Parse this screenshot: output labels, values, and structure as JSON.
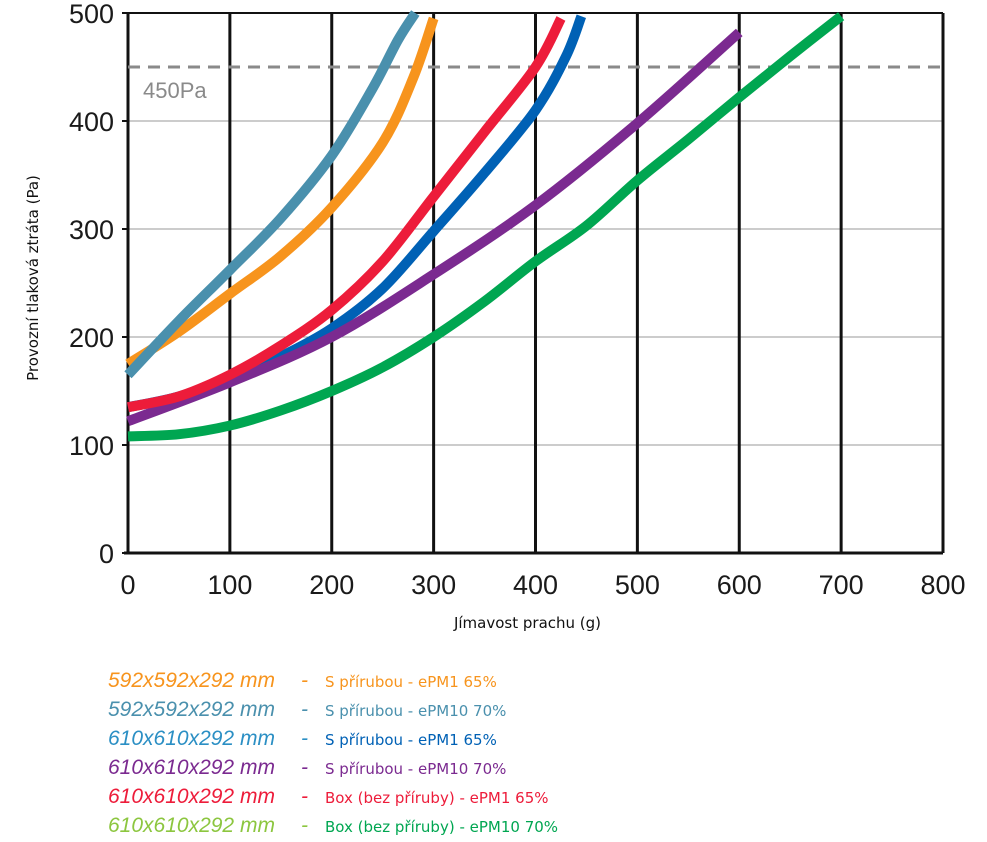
{
  "chart_data": {
    "type": "line",
    "xlabel": "Jímavost prachu (g)",
    "ylabel": "Provozní tlaková ztráta (Pa)",
    "xlim": [
      0,
      800
    ],
    "ylim": [
      0,
      500
    ],
    "xticks": [
      0,
      100,
      200,
      300,
      400,
      500,
      600,
      700,
      800
    ],
    "yticks": [
      0,
      100,
      200,
      300,
      400,
      500
    ],
    "grid": "on",
    "reference_line": {
      "y": 450,
      "label": "450Pa",
      "style": "dashed",
      "color": "#8a8a8a"
    },
    "series": [
      {
        "size": "592x592x292 mm",
        "dash": "-",
        "desc": "S přírubou - ePM1 65%",
        "color": "#f7941d",
        "points": [
          [
            0,
            175
          ],
          [
            50,
            205
          ],
          [
            100,
            240
          ],
          [
            150,
            275
          ],
          [
            200,
            320
          ],
          [
            250,
            380
          ],
          [
            280,
            440
          ],
          [
            300,
            495
          ]
        ]
      },
      {
        "size": "592x592x292 mm",
        "dash": "-",
        "desc": "S přírubou - ePM10 70%",
        "color": "#4a90ad",
        "points": [
          [
            0,
            165
          ],
          [
            50,
            215
          ],
          [
            100,
            262
          ],
          [
            150,
            310
          ],
          [
            200,
            368
          ],
          [
            240,
            430
          ],
          [
            265,
            475
          ],
          [
            282,
            500
          ]
        ]
      },
      {
        "size": "610x610x292 mm",
        "dash": "-",
        "desc": "S přírubou - ePM1 65%",
        "color": "#0061b5",
        "points": [
          [
            0,
            135
          ],
          [
            50,
            145
          ],
          [
            100,
            162
          ],
          [
            150,
            182
          ],
          [
            200,
            208
          ],
          [
            250,
            245
          ],
          [
            300,
            298
          ],
          [
            350,
            352
          ],
          [
            400,
            410
          ],
          [
            430,
            460
          ],
          [
            445,
            497
          ]
        ]
      },
      {
        "size": "610x610x292 mm",
        "dash": "-",
        "desc": "S přírubou - ePM10 70%",
        "color": "#7b2a90",
        "points": [
          [
            0,
            122
          ],
          [
            100,
            158
          ],
          [
            200,
            200
          ],
          [
            300,
            258
          ],
          [
            400,
            322
          ],
          [
            500,
            398
          ],
          [
            600,
            482
          ]
        ]
      },
      {
        "size": "610x610x292 mm",
        "dash": "-",
        "desc": "Box (bez příruby) - ePM1 65%",
        "color": "#ed1c3a",
        "points": [
          [
            0,
            135
          ],
          [
            50,
            145
          ],
          [
            100,
            165
          ],
          [
            150,
            192
          ],
          [
            200,
            225
          ],
          [
            250,
            270
          ],
          [
            300,
            330
          ],
          [
            350,
            390
          ],
          [
            400,
            450
          ],
          [
            425,
            495
          ]
        ]
      },
      {
        "size": "610x610x292 mm",
        "dash": "-",
        "desc": "Box (bez příruby) - ePM10 70%",
        "color": "#00a651",
        "points": [
          [
            0,
            108
          ],
          [
            50,
            110
          ],
          [
            100,
            118
          ],
          [
            150,
            132
          ],
          [
            200,
            150
          ],
          [
            250,
            172
          ],
          [
            300,
            200
          ],
          [
            350,
            233
          ],
          [
            400,
            270
          ],
          [
            450,
            303
          ],
          [
            500,
            345
          ],
          [
            550,
            383
          ],
          [
            600,
            422
          ],
          [
            650,
            460
          ],
          [
            700,
            497
          ]
        ]
      }
    ]
  },
  "legend_colors": {
    "size_colors": [
      "#f7941d",
      "#4a90ad",
      "#2b8fc4",
      "#7b2a90",
      "#ed1c3a",
      "#8cc63f"
    ],
    "desc_colors": [
      "#f7941d",
      "#4a90ad",
      "#0061b5",
      "#7b2a90",
      "#ed1c3a",
      "#00a651"
    ]
  }
}
